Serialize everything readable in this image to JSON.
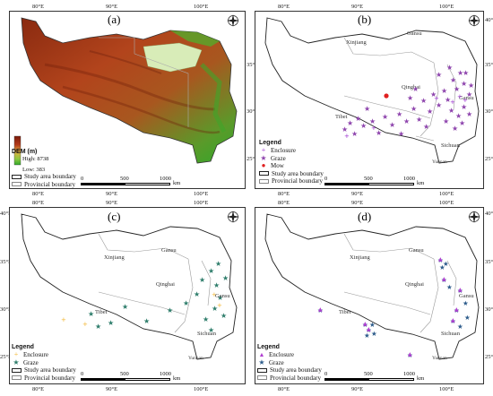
{
  "ticks": {
    "lon": [
      "80°E",
      "90°E",
      "100°E"
    ],
    "lat": [
      "40°N",
      "35°N",
      "30°N",
      "25°N"
    ]
  },
  "panels": [
    {
      "id": "a",
      "label": "(a)"
    },
    {
      "id": "b",
      "label": "(b)"
    },
    {
      "id": "c",
      "label": "(c)"
    },
    {
      "id": "d",
      "label": "(d)"
    }
  ],
  "regions": {
    "xinjiang": "Xinjiang",
    "gansu": "Gansu",
    "qinghai": "Qinghai",
    "tibet": "Tibet",
    "sichuan": "Sichuan",
    "yunnan": "Yunnan"
  },
  "legend_a": {
    "title": "DEM (m)",
    "high": "High: 8738",
    "low": "Low: 383",
    "study_area": "Study area boundary",
    "provincial": "Provincial boundary"
  },
  "legend_b": {
    "title": "Legend",
    "enclosure": "Enclosure",
    "graze": "Graze",
    "mow": "Mow",
    "study_area": "Study area boundary",
    "provincial": "Provincial boundary"
  },
  "legend_c": {
    "title": "Legend",
    "enclosure": "Enclosure",
    "graze": "Graze",
    "study_area": "Study area boundary",
    "provincial": "Provincial boundary"
  },
  "legend_d": {
    "title": "Legend",
    "enclosure": "Enclosure",
    "graze": "Graze",
    "study_area": "Study area boundary",
    "provincial": "Provincial boundary"
  },
  "scale": {
    "t0": "0",
    "t1": "500",
    "t2": "1000",
    "unit": "km"
  },
  "colors": {
    "enclosure_b": "#9b30d0",
    "graze_b": "#8e44ad",
    "mow": "#e02020",
    "enclosure_c": "#f2b632",
    "graze_c": "#2e7d6b",
    "enclosure_d": "#b03fd0",
    "graze_d": "#2e5d8c",
    "dem_high": "#7a1a0a",
    "dem_low": "#2fa82a"
  }
}
